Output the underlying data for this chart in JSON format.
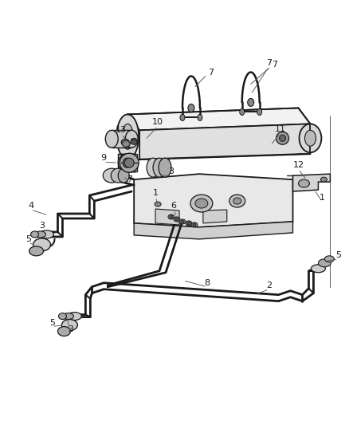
{
  "background_color": "#ffffff",
  "line_color": "#1a1a1a",
  "label_color": "#1a1a1a",
  "fig_width": 4.38,
  "fig_height": 5.33,
  "dpi": 100,
  "parts_gray": "#cccccc",
  "parts_dark": "#888888",
  "parts_mid": "#aaaaaa",
  "pipe_lw": 2.2,
  "thin_lw": 1.0,
  "label_fontsize": 7.5
}
